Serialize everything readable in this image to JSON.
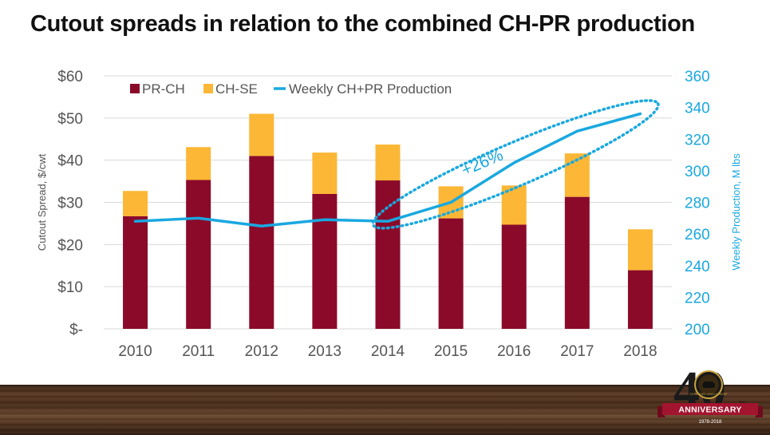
{
  "slide": {
    "title": "Cutout spreads in relation to the combined CH-PR production",
    "annotation": "+26%"
  },
  "badge": {
    "number": "40",
    "suffix": "TH",
    "ribbon": "ANNIVERSARY",
    "years": "1978-2018",
    "logo_text": "CERTIFIED ANGUS BEEF"
  },
  "colors": {
    "pr_ch": "#8b0a2a",
    "ch_se": "#fbb735",
    "production": "#19a8e0",
    "axis_text": "#555555",
    "grid": "#d9d9d9"
  },
  "chart_data": {
    "type": "bar",
    "stacked": true,
    "categories": [
      "2010",
      "2011",
      "2012",
      "2013",
      "2014",
      "2015",
      "2016",
      "2017",
      "2018"
    ],
    "series": [
      {
        "name": "PR-CH",
        "axis": "left",
        "values": [
          26.7,
          35.3,
          41.0,
          32.0,
          35.2,
          26.2,
          24.7,
          31.3,
          13.9
        ]
      },
      {
        "name": "CH-SE",
        "axis": "left",
        "values": [
          6.0,
          7.8,
          10.0,
          9.8,
          8.5,
          7.6,
          9.3,
          10.3,
          9.7
        ]
      },
      {
        "name": "Weekly CH+PR Production",
        "type": "line",
        "axis": "right",
        "values": [
          268,
          270,
          265,
          269,
          268,
          280,
          305,
          325,
          336
        ]
      }
    ],
    "ylabel": "Cutout Spread, $/cwt",
    "y2label": "Weekly Production, M lbs",
    "ylim": [
      0,
      60
    ],
    "y2lim": [
      200,
      360
    ],
    "yticks": [
      "$-",
      "$10",
      "$20",
      "$30",
      "$40",
      "$50",
      "$60"
    ],
    "y2ticks": [
      "200",
      "220",
      "240",
      "260",
      "280",
      "300",
      "320",
      "340",
      "360"
    ],
    "grid": true,
    "legend": "top-left"
  }
}
